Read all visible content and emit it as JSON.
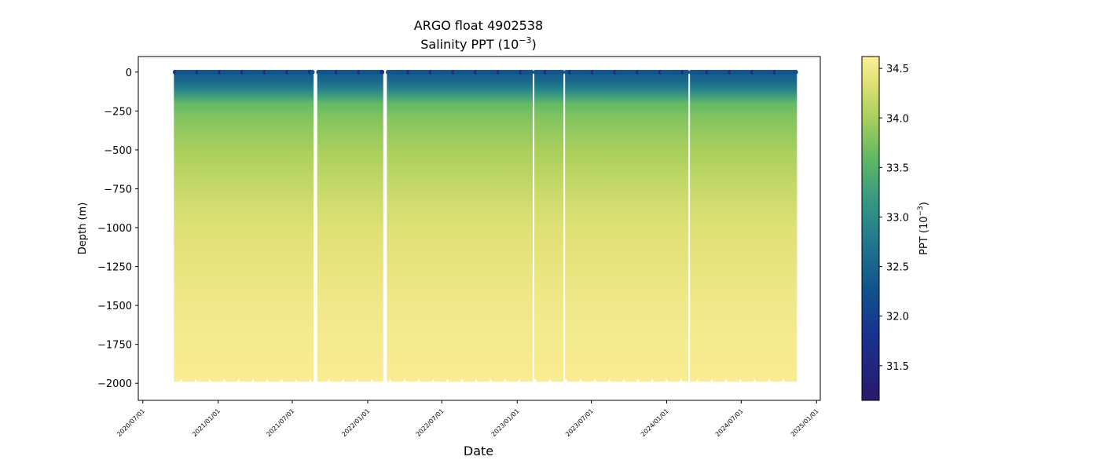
{
  "chart_data": {
    "type": "scatter",
    "title": "ARGO float 4902538",
    "subtitle_prefix": "Salinity PPT (10",
    "subtitle_exp": "−3",
    "subtitle_suffix": ")",
    "xlabel": "Date",
    "ylabel": "Depth (m)",
    "xlim": [
      "2020-06-20",
      "2025-01-10"
    ],
    "ylim": [
      -2110,
      100
    ],
    "x_ticks": [
      "2020/07/01",
      "2021/01/01",
      "2021/07/01",
      "2022/01/01",
      "2022/07/01",
      "2023/01/01",
      "2023/07/01",
      "2024/01/01",
      "2024/07/01",
      "2025/01/01"
    ],
    "y_ticks": [
      0,
      -250,
      -500,
      -750,
      -1000,
      -1250,
      -1500,
      -1750,
      -2000
    ],
    "y_tick_labels": [
      "0",
      "−250",
      "−500",
      "−750",
      "−1000",
      "−1250",
      "−1500",
      "−1750",
      "−2000"
    ],
    "colorbar": {
      "label_prefix": "PPT (10",
      "label_exp": "−3",
      "label_suffix": ")",
      "min": 31.15,
      "max": 34.62,
      "ticks": [
        31.5,
        32.0,
        32.5,
        33.0,
        33.5,
        34.0,
        34.5
      ],
      "tick_labels": [
        "31.5",
        "32.0",
        "32.5",
        "33.0",
        "33.5",
        "34.0",
        "34.5"
      ],
      "colormap": "haline"
    },
    "profile_start": "2020-09-18",
    "profile_end": "2024-11-15",
    "profile_interval_days": 5,
    "data_gaps": [
      [
        "2021-08-22",
        "2021-08-30"
      ],
      [
        "2022-02-10",
        "2022-02-16"
      ],
      [
        "2023-02-07",
        "2023-02-13"
      ],
      [
        "2023-04-25",
        "2023-04-30"
      ],
      [
        "2024-02-22",
        "2024-02-28"
      ]
    ],
    "max_depth_typical": -1990,
    "salinity_profile": [
      {
        "depth": 0,
        "salinity": 32.4
      },
      {
        "depth": -50,
        "salinity": 32.5
      },
      {
        "depth": -100,
        "salinity": 32.8
      },
      {
        "depth": -150,
        "salinity": 33.2
      },
      {
        "depth": -200,
        "salinity": 33.6
      },
      {
        "depth": -300,
        "salinity": 33.8
      },
      {
        "depth": -500,
        "salinity": 34.0
      },
      {
        "depth": -750,
        "salinity": 34.2
      },
      {
        "depth": -1000,
        "salinity": 34.35
      },
      {
        "depth": -1500,
        "salinity": 34.5
      },
      {
        "depth": -2000,
        "salinity": 34.58
      }
    ],
    "colors": {
      "background": "#ffffff",
      "axis": "#000000"
    }
  }
}
